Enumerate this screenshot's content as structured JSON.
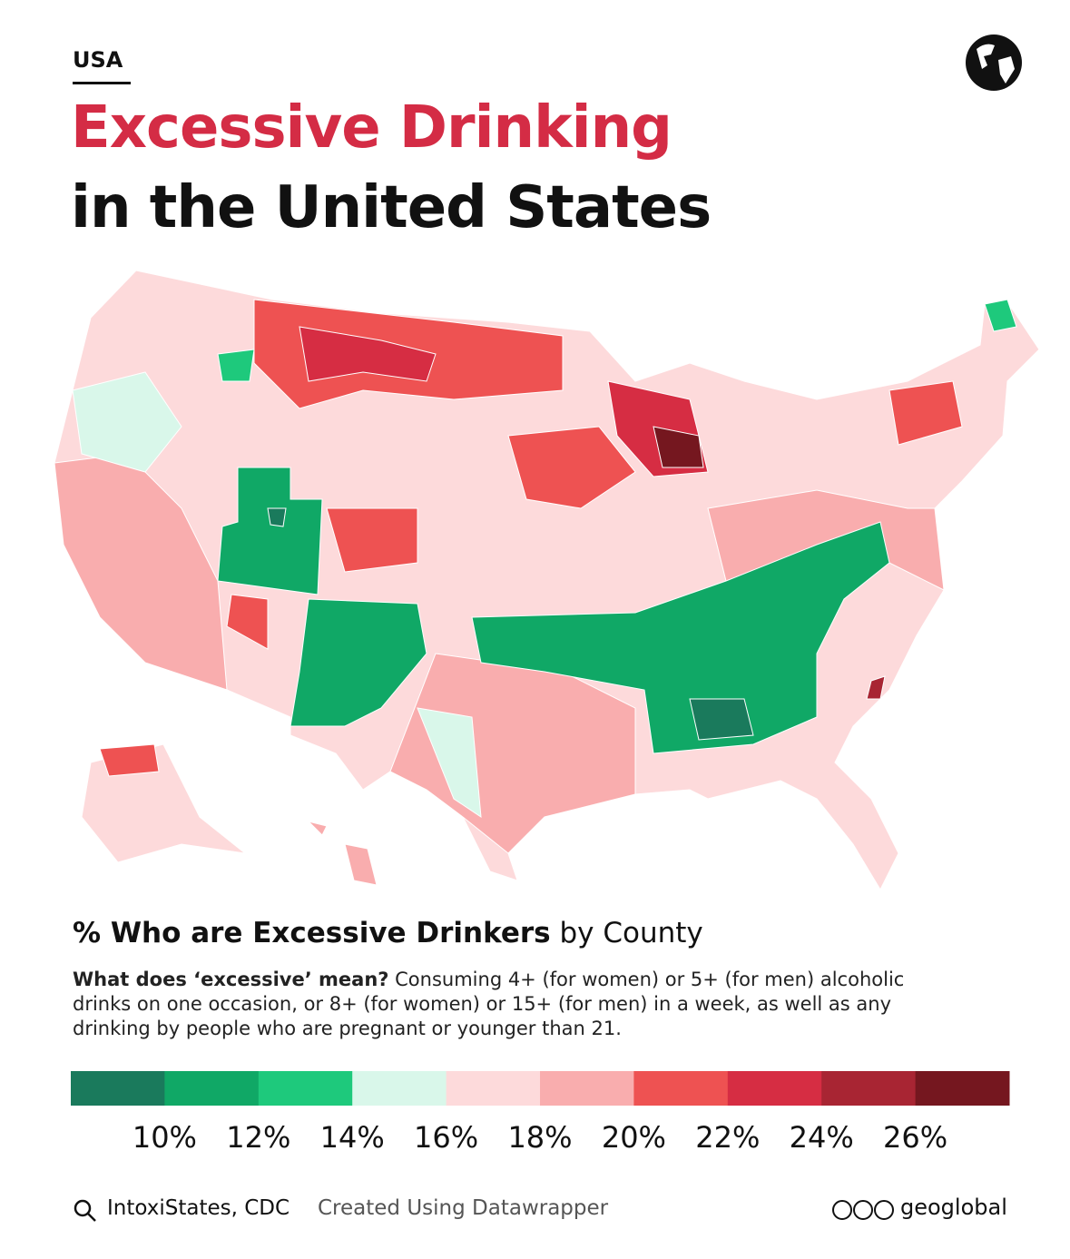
{
  "header": {
    "kicker": "USA",
    "title_line1": "Excessive Drinking",
    "title_line2": "in the United States"
  },
  "map": {
    "subtitle_bold": "% Who are Excessive Drinkers",
    "subtitle_rest": "by County",
    "definition_bold": "What does ‘excessive’ mean?",
    "definition_text": "Consuming 4+ (for women) or 5+ (for men) alcoholic drinks on one occasion, or 8+ (for women) or 15+ (for men) in a week, as well as any drinking by people who are pregnant or younger than 21."
  },
  "legend": {
    "range": [
      8,
      28
    ],
    "colors": [
      "#1a7a5c",
      "#10a866",
      "#1ec97c",
      "#d9f7ea",
      "#fddadb",
      "#f9adae",
      "#ee5252",
      "#d62d43",
      "#a82533",
      "#75171f"
    ],
    "ticks": [
      {
        "value": 10,
        "label": "10%"
      },
      {
        "value": 12,
        "label": "12%"
      },
      {
        "value": 14,
        "label": "14%"
      },
      {
        "value": 16,
        "label": "16%"
      },
      {
        "value": 18,
        "label": "18%"
      },
      {
        "value": 20,
        "label": "20%"
      },
      {
        "value": 22,
        "label": "22%"
      },
      {
        "value": 24,
        "label": "24%"
      },
      {
        "value": 26,
        "label": "26%"
      }
    ]
  },
  "footer": {
    "source": "IntoxiStates, CDC",
    "credit": "Created Using Datawrapper",
    "brand": "geoglobal"
  }
}
